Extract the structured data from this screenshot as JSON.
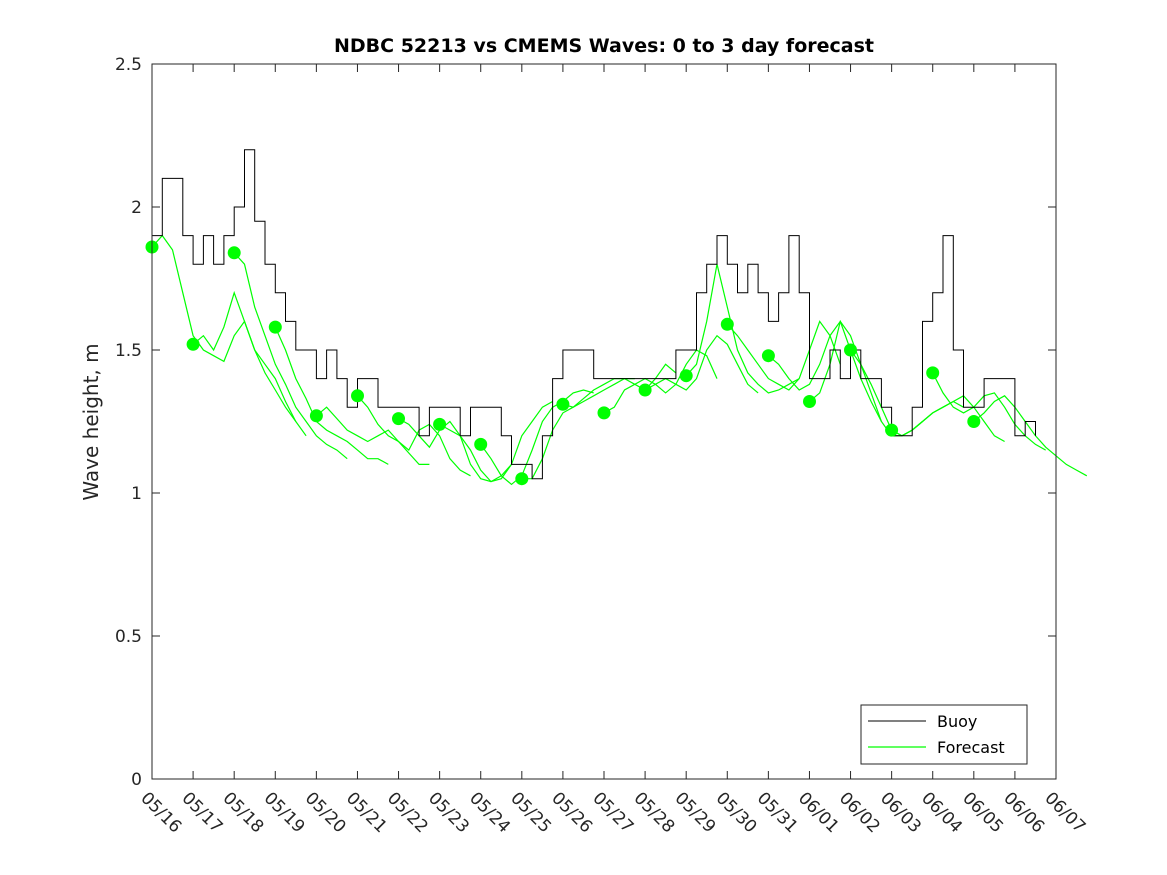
{
  "chart_data": {
    "type": "line",
    "title": "NDBC 52213 vs CMEMS Waves: 0 to 3 day forecast",
    "xlabel": "",
    "ylabel": "Wave height, m",
    "x_tick_labels": [
      "05/16",
      "05/17",
      "05/18",
      "05/19",
      "05/20",
      "05/21",
      "05/22",
      "05/23",
      "05/24",
      "05/25",
      "05/26",
      "05/27",
      "05/28",
      "05/29",
      "05/30",
      "05/31",
      "06/01",
      "06/02",
      "06/03",
      "06/04",
      "06/05",
      "06/06",
      "06/07"
    ],
    "y_tick_labels": [
      "0",
      "0.5",
      "1",
      "1.5",
      "2",
      "2.5"
    ],
    "xlim": [
      "05/16",
      "06/07"
    ],
    "ylim": [
      0,
      2.5
    ],
    "grid": false,
    "legend": {
      "position": "bottom-right",
      "entries": [
        "Buoy",
        "Forecast"
      ]
    },
    "colors": {
      "buoy": "#000000",
      "forecast": "#00ff00"
    },
    "series": [
      {
        "name": "Buoy",
        "x": [
          "05/16",
          "05/16 06h",
          "05/16 12h",
          "05/16 18h",
          "05/17",
          "05/17 06h",
          "05/17 12h",
          "05/17 18h",
          "05/18",
          "05/18 06h",
          "05/18 12h",
          "05/18 18h",
          "05/19",
          "05/19 06h",
          "05/19 12h",
          "05/19 18h",
          "05/20",
          "05/20 06h",
          "05/20 12h",
          "05/20 18h",
          "05/21",
          "05/21 06h",
          "05/21 12h",
          "05/21 18h",
          "05/22",
          "05/22 06h",
          "05/22 12h",
          "05/22 18h",
          "05/23",
          "05/23 06h",
          "05/23 12h",
          "05/23 18h",
          "05/24",
          "05/24 06h",
          "05/24 12h",
          "05/24 18h",
          "05/25",
          "05/25 06h",
          "05/25 12h",
          "05/25 18h",
          "05/26",
          "05/26 06h",
          "05/26 12h",
          "05/26 18h",
          "05/27",
          "05/27 06h",
          "05/27 12h",
          "05/27 18h",
          "05/28",
          "05/28 06h",
          "05/28 12h",
          "05/28 18h",
          "05/29",
          "05/29 06h",
          "05/29 12h",
          "05/29 18h",
          "05/30",
          "05/30 06h",
          "05/30 12h",
          "05/30 18h",
          "05/31",
          "05/31 06h",
          "05/31 12h",
          "05/31 18h",
          "06/01",
          "06/01 06h",
          "06/01 12h",
          "06/01 18h",
          "06/02",
          "06/02 06h",
          "06/02 12h",
          "06/02 18h",
          "06/03",
          "06/03 06h",
          "06/03 12h",
          "06/03 18h",
          "06/04",
          "06/04 06h",
          "06/04 12h",
          "06/04 18h",
          "06/05",
          "06/05 06h",
          "06/05 12h",
          "06/05 18h",
          "06/06",
          "06/06 06h",
          "06/06 12h"
        ],
        "y": [
          1.9,
          2.1,
          2.1,
          1.9,
          1.8,
          1.9,
          1.8,
          1.9,
          2.0,
          2.2,
          1.95,
          1.8,
          1.7,
          1.6,
          1.5,
          1.5,
          1.4,
          1.5,
          1.4,
          1.3,
          1.4,
          1.4,
          1.3,
          1.3,
          1.3,
          1.3,
          1.2,
          1.3,
          1.3,
          1.3,
          1.2,
          1.3,
          1.3,
          1.3,
          1.2,
          1.1,
          1.1,
          1.05,
          1.2,
          1.4,
          1.5,
          1.5,
          1.5,
          1.4,
          1.4,
          1.4,
          1.4,
          1.4,
          1.4,
          1.4,
          1.4,
          1.5,
          1.5,
          1.7,
          1.8,
          1.9,
          1.8,
          1.7,
          1.8,
          1.7,
          1.6,
          1.7,
          1.9,
          1.7,
          1.4,
          1.4,
          1.5,
          1.4,
          1.5,
          1.4,
          1.4,
          1.3,
          1.2,
          1.2,
          1.3,
          1.6,
          1.7,
          1.9,
          1.5,
          1.3,
          1.3,
          1.4,
          1.4,
          1.4,
          1.2,
          1.25,
          1.2
        ]
      },
      {
        "name": "Forecast",
        "runs": [
          {
            "start": "05/16",
            "y": [
              1.86,
              1.9,
              1.85,
              1.7,
              1.55,
              1.5,
              1.48,
              1.46,
              1.55,
              1.6,
              1.5,
              1.45,
              1.4,
              1.32,
              1.25
            ]
          },
          {
            "start": "05/17",
            "y": [
              1.52,
              1.55,
              1.5,
              1.58,
              1.7,
              1.6,
              1.5,
              1.42,
              1.36,
              1.3,
              1.25,
              1.2
            ]
          },
          {
            "start": "05/18",
            "y": [
              1.84,
              1.8,
              1.65,
              1.55,
              1.45,
              1.38,
              1.3,
              1.25,
              1.2,
              1.17,
              1.15,
              1.12
            ]
          },
          {
            "start": "05/19",
            "y": [
              1.58,
              1.5,
              1.4,
              1.33,
              1.25,
              1.22,
              1.2,
              1.18,
              1.15,
              1.12,
              1.12,
              1.1
            ]
          },
          {
            "start": "05/20",
            "y": [
              1.27,
              1.3,
              1.26,
              1.22,
              1.2,
              1.18,
              1.2,
              1.22,
              1.18,
              1.14,
              1.1,
              1.1
            ]
          },
          {
            "start": "05/21",
            "y": [
              1.34,
              1.3,
              1.24,
              1.2,
              1.18,
              1.15,
              1.22,
              1.24,
              1.2,
              1.12,
              1.08,
              1.06
            ]
          },
          {
            "start": "05/22",
            "y": [
              1.26,
              1.24,
              1.2,
              1.16,
              1.22,
              1.25,
              1.2,
              1.1,
              1.05,
              1.04,
              1.06,
              1.1
            ]
          },
          {
            "start": "05/23",
            "y": [
              1.24,
              1.22,
              1.2,
              1.15,
              1.08,
              1.04,
              1.05,
              1.1,
              1.2,
              1.25,
              1.3,
              1.32
            ]
          },
          {
            "start": "05/24",
            "y": [
              1.17,
              1.12,
              1.06,
              1.03,
              1.06,
              1.15,
              1.25,
              1.3,
              1.32,
              1.35,
              1.36,
              1.35
            ]
          },
          {
            "start": "05/25",
            "y": [
              1.05,
              1.05,
              1.12,
              1.22,
              1.28,
              1.3,
              1.32,
              1.34,
              1.36,
              1.38,
              1.4,
              1.4
            ]
          },
          {
            "start": "05/26",
            "y": [
              1.31,
              1.3,
              1.33,
              1.36,
              1.38,
              1.4,
              1.4,
              1.38,
              1.36,
              1.4,
              1.45,
              1.42
            ]
          },
          {
            "start": "05/27",
            "y": [
              1.28,
              1.3,
              1.36,
              1.38,
              1.4,
              1.38,
              1.35,
              1.38,
              1.45,
              1.5,
              1.48,
              1.4
            ]
          },
          {
            "start": "05/28",
            "y": [
              1.36,
              1.38,
              1.4,
              1.38,
              1.36,
              1.4,
              1.5,
              1.55,
              1.52,
              1.45,
              1.38,
              1.35
            ]
          },
          {
            "start": "05/29",
            "y": [
              1.41,
              1.45,
              1.6,
              1.8,
              1.65,
              1.5,
              1.42,
              1.38,
              1.35,
              1.36,
              1.38,
              1.4
            ]
          },
          {
            "start": "05/30",
            "y": [
              1.59,
              1.55,
              1.5,
              1.45,
              1.4,
              1.38,
              1.36,
              1.4,
              1.5,
              1.6,
              1.55,
              1.45
            ]
          },
          {
            "start": "05/31",
            "y": [
              1.48,
              1.45,
              1.4,
              1.36,
              1.38,
              1.45,
              1.55,
              1.6,
              1.5,
              1.4,
              1.32,
              1.25
            ]
          },
          {
            "start": "06/01",
            "y": [
              1.32,
              1.35,
              1.45,
              1.6,
              1.55,
              1.45,
              1.35,
              1.25,
              1.2,
              1.2,
              1.22,
              1.25
            ]
          },
          {
            "start": "06/02",
            "y": [
              1.5,
              1.45,
              1.38,
              1.3,
              1.22,
              1.2,
              1.22,
              1.25,
              1.28,
              1.3,
              1.32,
              1.3
            ]
          },
          {
            "start": "06/03",
            "y": [
              1.22,
              1.2,
              1.22,
              1.25,
              1.28,
              1.3,
              1.32,
              1.34,
              1.3,
              1.25,
              1.2,
              1.18
            ]
          },
          {
            "start": "06/04",
            "y": [
              1.42,
              1.35,
              1.3,
              1.28,
              1.3,
              1.34,
              1.35,
              1.3,
              1.24,
              1.2,
              1.17,
              1.15
            ]
          },
          {
            "start": "06/05",
            "y": [
              1.25,
              1.28,
              1.32,
              1.34,
              1.3,
              1.25,
              1.2,
              1.16,
              1.13,
              1.1,
              1.08,
              1.06
            ]
          }
        ]
      }
    ]
  }
}
